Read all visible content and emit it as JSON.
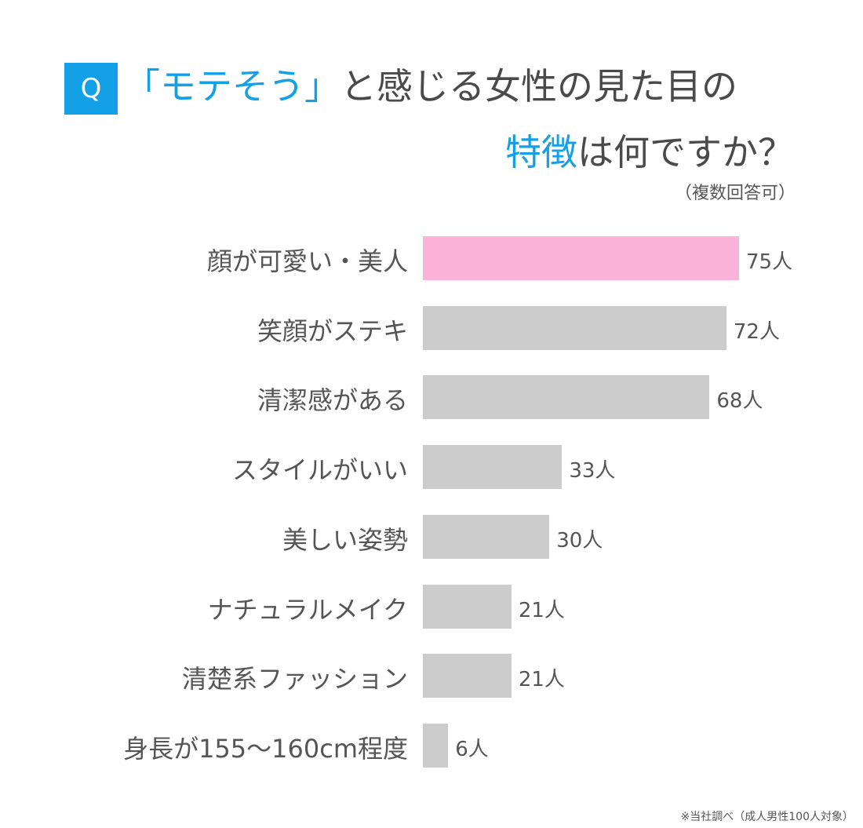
{
  "title": {
    "q_label": "Q",
    "line1_highlight": "「モテそう」",
    "line1_rest": "と感じる女性の見た目の",
    "line2_highlight": "特徴",
    "line2_rest": "は何ですか？",
    "note": "（複数回答可）"
  },
  "footnote": "※当社調べ（成人男性100人対象）",
  "colors": {
    "accent": "#14a0e6",
    "highlight_bar": "#fdb3d9",
    "bar": "#cccccc",
    "text": "#555555"
  },
  "chart_data": {
    "type": "bar",
    "orientation": "horizontal",
    "title": "「モテそう」と感じる女性の見た目の特徴は何ですか？",
    "categories": [
      "顔が可愛い・美人",
      "笑顔がステキ",
      "清潔感がある",
      "スタイルがいい",
      "美しい姿勢",
      "ナチュラルメイク",
      "清楚系ファッション",
      "身長が155〜160cm程度"
    ],
    "values": [
      75,
      72,
      68,
      33,
      30,
      21,
      21,
      6
    ],
    "value_labels": [
      "75人",
      "72人",
      "68人",
      "33人",
      "30人",
      "21人",
      "21人",
      "6人"
    ],
    "highlighted_index": 0,
    "xlim": [
      0,
      75
    ],
    "grid": false
  }
}
